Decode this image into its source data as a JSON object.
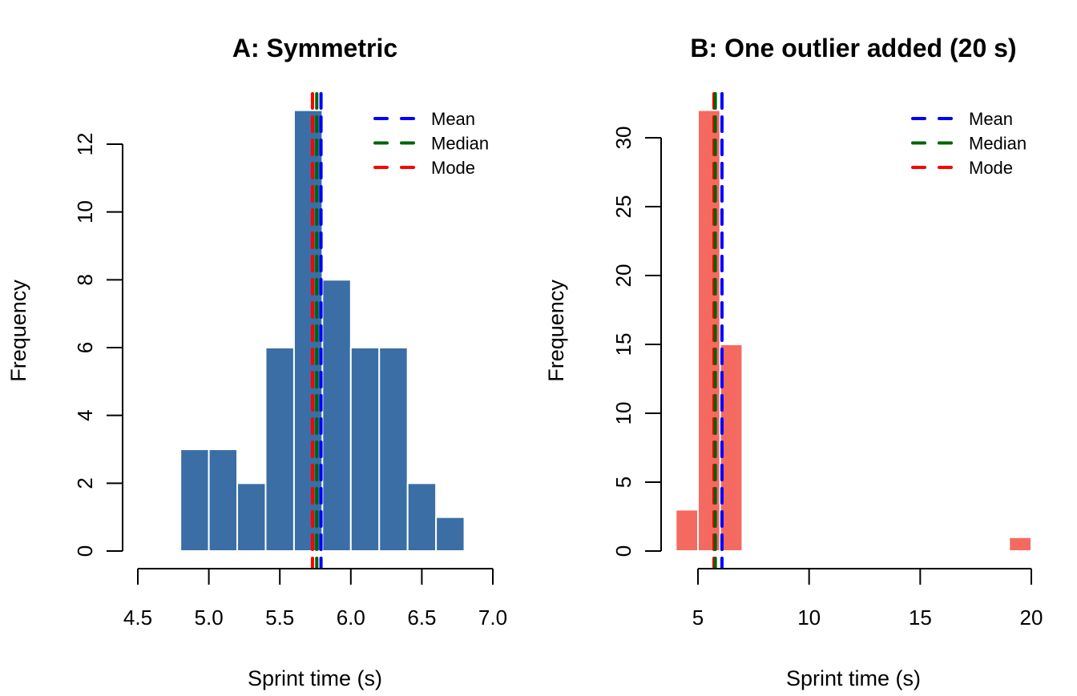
{
  "chart_data": [
    {
      "type": "bar",
      "subtype": "histogram",
      "title": "A: Symmetric",
      "xlabel": "Sprint time (s)",
      "ylabel": "Frequency",
      "xlim": [
        4.5,
        7.0
      ],
      "ylim": [
        0,
        13
      ],
      "xticks": [
        "4.5",
        "5.0",
        "5.5",
        "6.0",
        "6.5",
        "7.0"
      ],
      "xtick_values": [
        4.5,
        5.0,
        5.5,
        6.0,
        6.5,
        7.0
      ],
      "yticks": [
        "0",
        "2",
        "4",
        "6",
        "8",
        "10",
        "12"
      ],
      "ytick_values": [
        0,
        2,
        4,
        6,
        8,
        10,
        12
      ],
      "bin_edges": [
        4.8,
        5.0,
        5.2,
        5.4,
        5.6,
        5.8,
        6.0,
        6.2,
        6.4,
        6.6,
        6.8
      ],
      "values": [
        3,
        3,
        2,
        6,
        13,
        8,
        6,
        6,
        2,
        1
      ],
      "bar_color": "#3A6EA5",
      "lines": [
        {
          "name": "Mode",
          "value": 5.73,
          "color": "#FF0000"
        },
        {
          "name": "Median",
          "value": 5.76,
          "color": "#006400"
        },
        {
          "name": "Mean",
          "value": 5.79,
          "color": "#0000FF"
        }
      ],
      "legend": {
        "position": "top-right",
        "entries": [
          {
            "label": "Mean",
            "color": "#0000FF"
          },
          {
            "label": "Median",
            "color": "#006400"
          },
          {
            "label": "Mode",
            "color": "#FF0000"
          }
        ]
      },
      "grid": false
    },
    {
      "type": "bar",
      "subtype": "histogram",
      "title": "B: One outlier added (20 s)",
      "xlabel": "Sprint time (s)",
      "ylabel": "Frequency",
      "xlim": [
        5,
        20
      ],
      "ylim": [
        0,
        32
      ],
      "xticks": [
        "5",
        "10",
        "15",
        "20"
      ],
      "xtick_values": [
        5,
        10,
        15,
        20
      ],
      "yticks": [
        "0",
        "5",
        "10",
        "15",
        "20",
        "25",
        "30"
      ],
      "ytick_values": [
        0,
        5,
        10,
        15,
        20,
        25,
        30
      ],
      "bin_edges": [
        4,
        5,
        6,
        7,
        8,
        9,
        10,
        11,
        12,
        13,
        14,
        15,
        16,
        17,
        18,
        19,
        20
      ],
      "values": [
        3,
        32,
        15,
        0,
        0,
        0,
        0,
        0,
        0,
        0,
        0,
        0,
        0,
        0,
        0,
        1
      ],
      "bar_color": "#F46A60",
      "lines": [
        {
          "name": "Mode",
          "value": 5.72,
          "color": "#FF0000"
        },
        {
          "name": "Median",
          "value": 5.78,
          "color": "#006400"
        },
        {
          "name": "Mean",
          "value": 6.08,
          "color": "#0000FF"
        }
      ],
      "legend": {
        "position": "top-right",
        "entries": [
          {
            "label": "Mean",
            "color": "#0000FF"
          },
          {
            "label": "Median",
            "color": "#006400"
          },
          {
            "label": "Mode",
            "color": "#FF0000"
          }
        ]
      },
      "grid": false
    }
  ]
}
